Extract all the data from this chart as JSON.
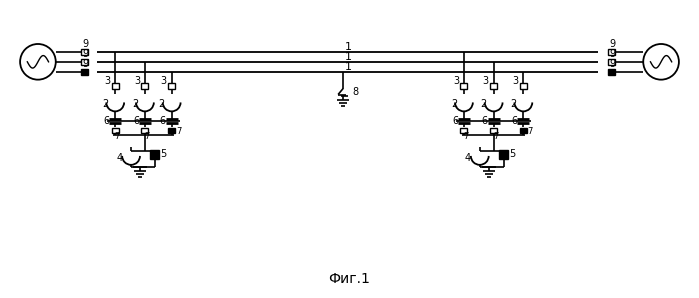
{
  "bg_color": "#ffffff",
  "line_color": "#000000",
  "title": "Фиг.1",
  "title_fontsize": 10,
  "fig_w": 6.99,
  "fig_h": 2.98,
  "dpi": 100
}
